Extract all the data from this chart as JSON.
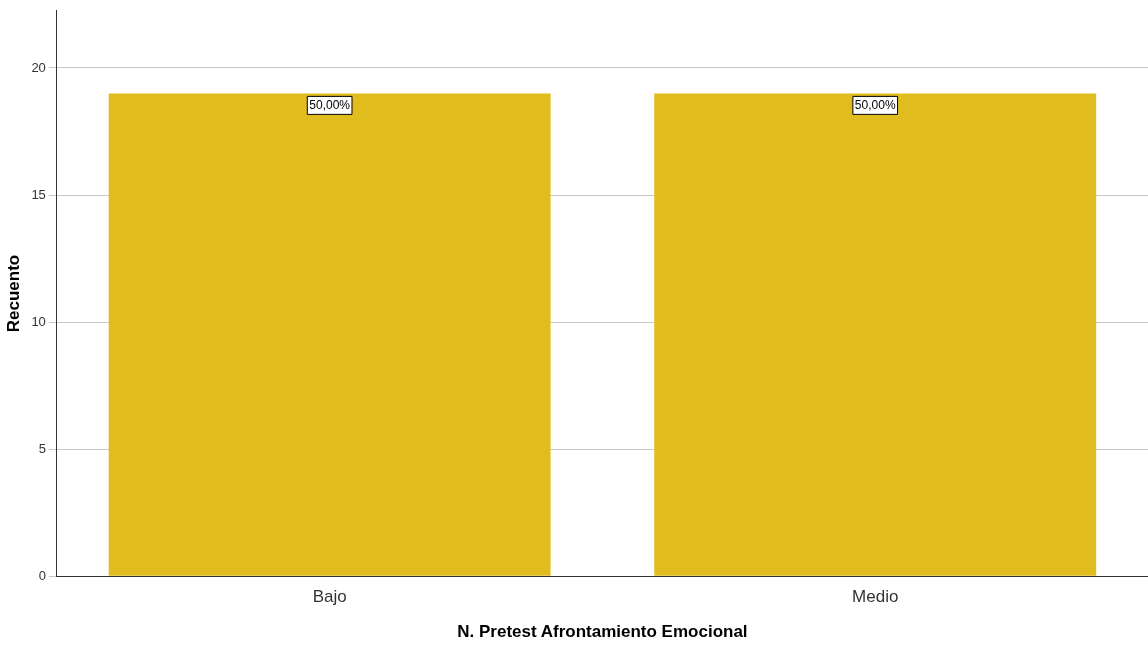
{
  "chart_data": {
    "type": "bar",
    "xlabel": "N. Pretest Afrontamiento Emocional",
    "ylabel": "Recuento",
    "categories": [
      "Bajo",
      "Medio"
    ],
    "values": [
      19,
      19
    ],
    "color": "#e1bc1f",
    "annotations": [
      {
        "text": "50,00%",
        "x": "Bajo",
        "y": 19
      },
      {
        "text": "50,00%",
        "x": "Medio",
        "y": 19
      }
    ],
    "ylim": [
      0,
      22.25
    ],
    "yticks": [
      0,
      5,
      10,
      15,
      20
    ],
    "grid": "y",
    "legend": false
  }
}
